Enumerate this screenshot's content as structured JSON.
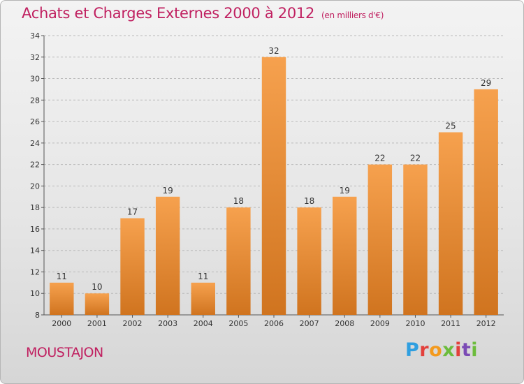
{
  "title": "Achats et Charges Externes 2000 à 2012",
  "subtitle": "(en milliers d'€)",
  "commune": "MOUSTAJON",
  "logo": {
    "text": "Proxiti",
    "colors": [
      "#2f9fe0",
      "#e3403b",
      "#f39a1e",
      "#6cbc3c",
      "#e3403b",
      "#7b4bb5",
      "#6cbc3c"
    ]
  },
  "chart_data": {
    "type": "bar",
    "categories": [
      "2000",
      "2001",
      "2002",
      "2003",
      "2004",
      "2005",
      "2006",
      "2007",
      "2008",
      "2009",
      "2010",
      "2011",
      "2012"
    ],
    "values": [
      11,
      10,
      17,
      19,
      11,
      18,
      32,
      18,
      19,
      22,
      22,
      25,
      29
    ],
    "data_labels": [
      "11",
      "10",
      "17",
      "19",
      "11",
      "18",
      "32",
      "18",
      "19",
      "22",
      "22",
      "25",
      "29"
    ],
    "y_ticks": [
      "8",
      "10",
      "12",
      "14",
      "16",
      "18",
      "20",
      "22",
      "24",
      "26",
      "28",
      "30",
      "32",
      "34"
    ],
    "ylim": [
      8,
      34
    ],
    "grid": true,
    "bar_color_top": "#f6a14e",
    "bar_color_bottom": "#d0741f"
  }
}
